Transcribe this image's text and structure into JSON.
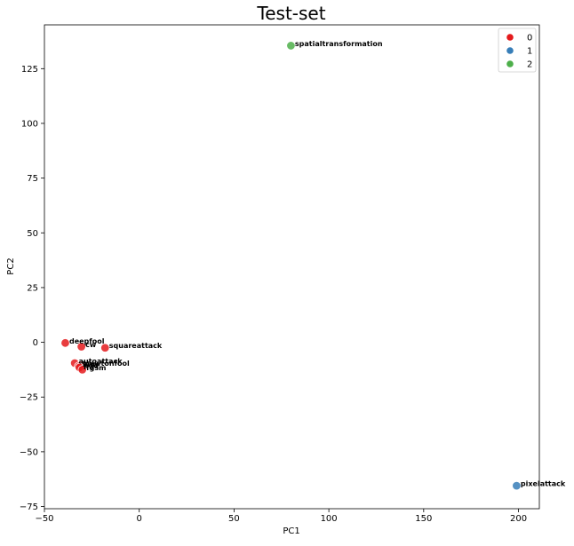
{
  "chart_data": {
    "type": "scatter",
    "title": "Test-set",
    "xlabel": "PC1",
    "ylabel": "PC2",
    "xlim": [
      -50,
      211
    ],
    "ylim": [
      -76,
      145
    ],
    "xticks": [
      -50,
      0,
      50,
      100,
      150,
      200
    ],
    "yticks": [
      -75,
      -50,
      -25,
      0,
      25,
      50,
      75,
      100,
      125
    ],
    "grid": false,
    "legend_position": "top-right",
    "legend": [
      {
        "label": "0",
        "color": "#e41a1c"
      },
      {
        "label": "1",
        "color": "#377eb8"
      },
      {
        "label": "2",
        "color": "#4daf4a"
      }
    ],
    "points": [
      {
        "label": "spatialtransformation",
        "x": 80,
        "y": 135.5,
        "cluster": 2
      },
      {
        "label": "deepfool",
        "x": -39,
        "y": -0.3,
        "cluster": 0
      },
      {
        "label": "cw",
        "x": -30.5,
        "y": -2,
        "cluster": 0
      },
      {
        "label": "squareattack",
        "x": -18,
        "y": -2.5,
        "cluster": 0
      },
      {
        "label": "autoattack",
        "x": -34,
        "y": -9.5,
        "cluster": 0
      },
      {
        "label": "newtonfool",
        "x": -31,
        "y": -10.5,
        "cluster": 0
      },
      {
        "label": "bim",
        "x": -32,
        "y": -11,
        "cluster": 0
      },
      {
        "label": "pgd",
        "x": -31.5,
        "y": -11.5,
        "cluster": 0
      },
      {
        "label": "fgsm",
        "x": -30,
        "y": -12.5,
        "cluster": 0
      },
      {
        "label": "pixelattack",
        "x": 199,
        "y": -65.5,
        "cluster": 1
      }
    ]
  }
}
